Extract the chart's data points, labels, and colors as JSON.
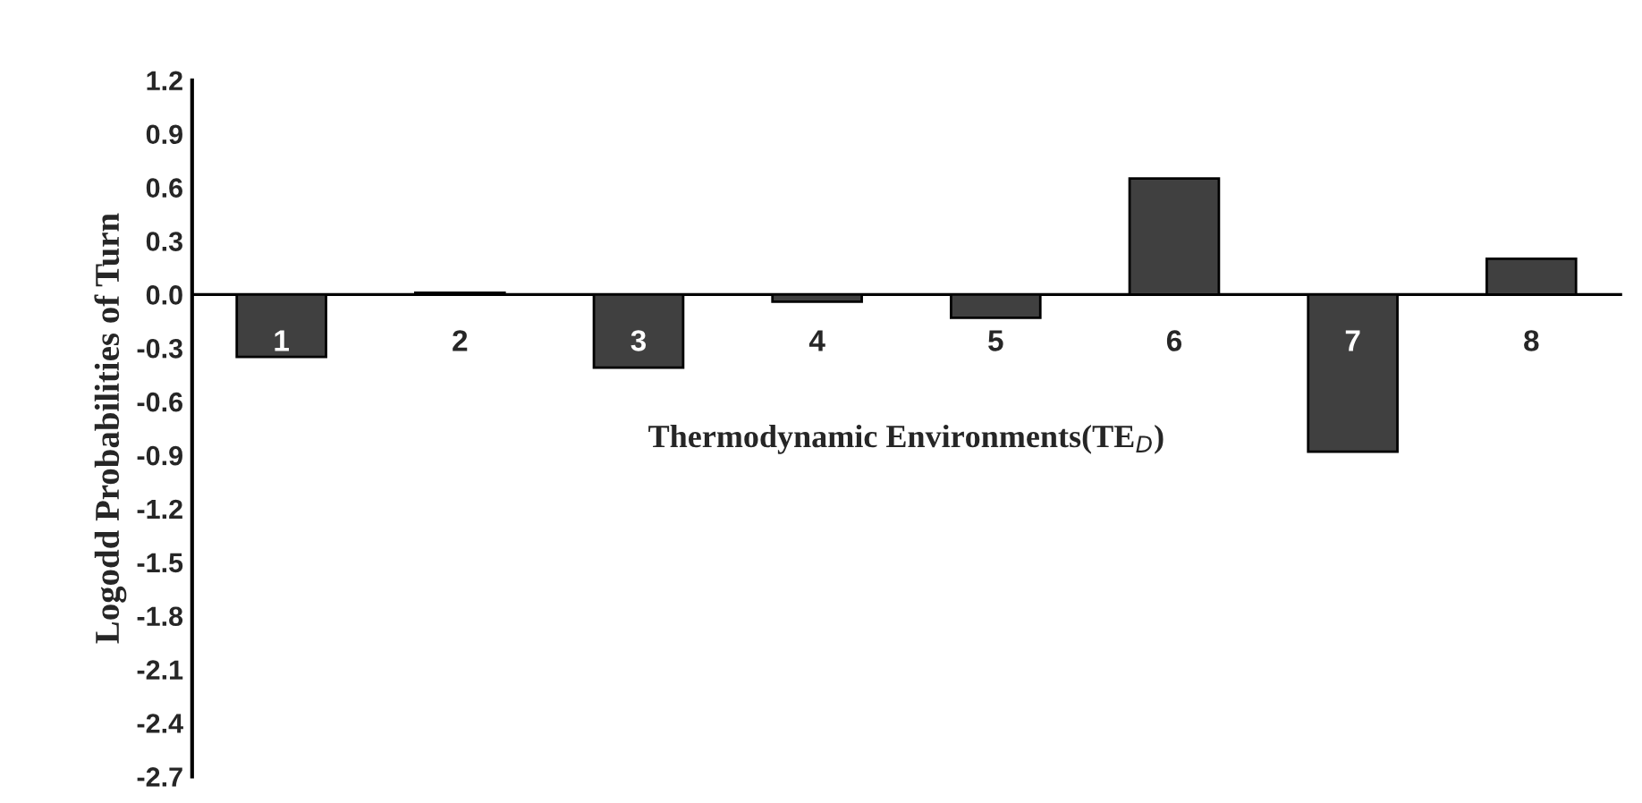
{
  "chart_data": {
    "type": "bar",
    "xlabel": "Thermodynamic Environments(TE$_{D}$)",
    "ylabel": "Logodd Probabilities of Turn",
    "categories": [
      "1",
      "2",
      "3",
      "4",
      "5",
      "6",
      "7",
      "8"
    ],
    "values": [
      -0.35,
      0.01,
      -0.41,
      -0.04,
      -0.13,
      0.65,
      -0.88,
      0.2
    ],
    "color": "#404040",
    "ylim": [
      -2.7,
      1.2
    ],
    "yticks": [
      -2.7,
      -2.4,
      -2.1,
      -1.8,
      -1.5,
      -1.2,
      -0.9,
      -0.6,
      -0.3,
      {
        "value": 0,
        "label": "0.0"
      },
      0.3,
      0.6,
      0.9,
      1.2
    ],
    "grid": false,
    "legend": false
  }
}
